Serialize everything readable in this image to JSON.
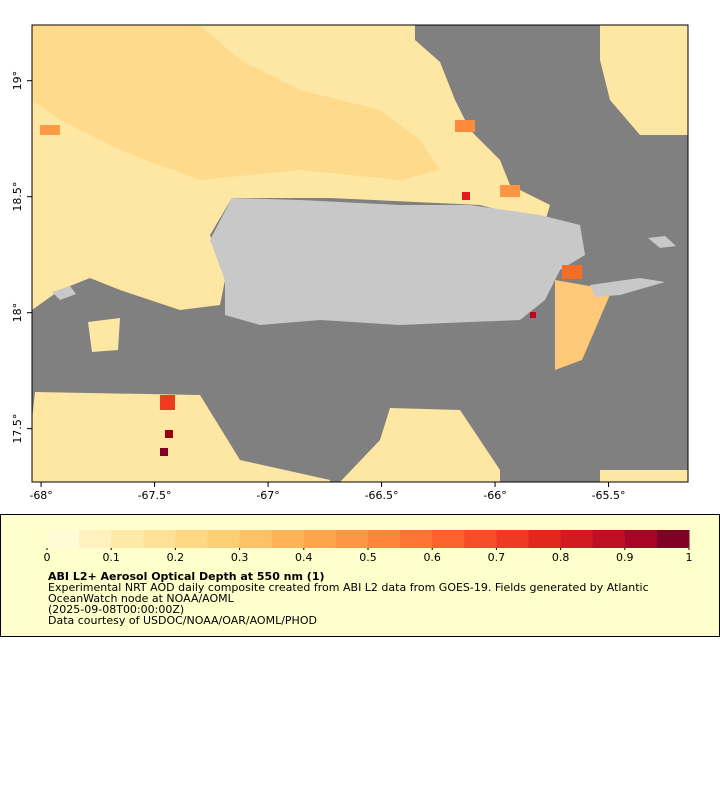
{
  "map": {
    "xlim": [
      -68.04,
      -65.15
    ],
    "ylim": [
      17.27,
      19.24
    ],
    "xticks": [
      {
        "value": -68,
        "label": "-68°"
      },
      {
        "value": -67.5,
        "label": "-67.5°"
      },
      {
        "value": -67,
        "label": "-67°"
      },
      {
        "value": -66.5,
        "label": "-66.5°"
      },
      {
        "value": -66,
        "label": "-66°"
      },
      {
        "value": -65.5,
        "label": "-65.5°"
      }
    ],
    "yticks": [
      {
        "value": 19,
        "label": "19°"
      },
      {
        "value": 18.5,
        "label": "18.5°"
      },
      {
        "value": 18,
        "label": "18°"
      },
      {
        "value": 17.5,
        "label": "17.5°"
      }
    ]
  },
  "colorbar": {
    "range": [
      0,
      1
    ],
    "ticks": [
      0,
      0.1,
      0.2,
      0.3,
      0.4,
      0.5,
      0.6,
      0.7,
      0.8,
      0.9,
      1
    ],
    "colors": [
      "#fffbd6",
      "#fff2c0",
      "#feeaa8",
      "#fee196",
      "#fed883",
      "#fece75",
      "#fec266",
      "#feb357",
      "#fea54c",
      "#fd9642",
      "#fd863b",
      "#fd7434",
      "#fc612e",
      "#f64d28",
      "#ee3a23",
      "#e2271f",
      "#d11a21",
      "#bf0f25",
      "#a80426",
      "#800026"
    ]
  },
  "legend": {
    "title": "ABI L2+ Aerosol Optical Depth at 550 nm (1)",
    "lines": [
      "Experimental NRT AOD daily composite created from ABI L2 data from GOES-19. Fields generated by Atlantic",
      "OceanWatch node at NOAA/AOML",
      "(2025-09-08T00:00:00Z)",
      "Data courtesy of USDOC/NOAA/OAR/AOML/PHOD"
    ]
  }
}
